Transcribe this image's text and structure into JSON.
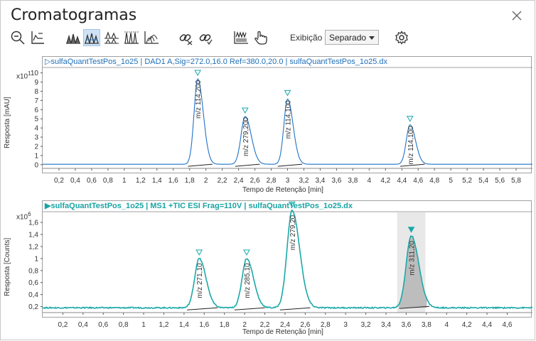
{
  "window": {
    "title": "Cromatogramas"
  },
  "toolbar": {
    "icons": [
      "zoom-out-icon",
      "autoscale-icon",
      "overlay-peaks-icon",
      "separate-peaks-icon",
      "stack-peaks-icon",
      "normalize-peaks-icon",
      "offset-peaks-icon",
      "link-icon",
      "unlink-icon",
      "integration-icon",
      "hand-select-icon",
      "settings-icon"
    ],
    "display_label": "Exibição",
    "display_value": "Separado"
  },
  "colors": {
    "uv_trace": "#1e72c6",
    "ms_trace": "#1aa8a8",
    "selected_peak_fill": "#c8c8c8",
    "marker": "#3a9ad6"
  },
  "chart_data": [
    {
      "type": "line",
      "title": "▷sulfaQuantTestPos_1o25 | DAD1 A,Sig=272.0,16.0  Ref=380.0,20.0 | sulfaQuantTestPos_1o25.dx",
      "xlabel": "Tempo de Retenção [min]",
      "ylabel": "Resposta [mAU]",
      "y_multiplier_base": "x10",
      "y_multiplier_exp": "1",
      "xlim": [
        0,
        6.0
      ],
      "ylim": [
        -0.4,
        10.2
      ],
      "x_ticks": [
        "0,2",
        "0,4",
        "0,6",
        "0,8",
        "1",
        "1,2",
        "1,4",
        "1,6",
        "1,8",
        "2",
        "2,2",
        "2,4",
        "2,6",
        "2,8",
        "3",
        "3,2",
        "3,4",
        "3,6",
        "3,8",
        "4",
        "4,2",
        "4,4",
        "4,6",
        "4,8",
        "5",
        "5,2",
        "5,4",
        "5,6",
        "5,8"
      ],
      "x_tick_values": [
        0.2,
        0.4,
        0.6,
        0.8,
        1.0,
        1.2,
        1.4,
        1.6,
        1.8,
        2.0,
        2.2,
        2.4,
        2.6,
        2.8,
        3.0,
        3.2,
        3.4,
        3.6,
        3.8,
        4.0,
        4.2,
        4.4,
        4.6,
        4.8,
        5.0,
        5.2,
        5.4,
        5.6,
        5.8
      ],
      "y_ticks": [
        "0",
        "1",
        "2",
        "3",
        "4",
        "5",
        "6",
        "7",
        "8",
        "9",
        "10"
      ],
      "y_tick_values": [
        0,
        1,
        2,
        3,
        4,
        5,
        6,
        7,
        8,
        9,
        10
      ],
      "baseline": 0.05,
      "peaks": [
        {
          "rt": 1.9,
          "height": 9.3,
          "width": 0.045,
          "label": "m/z 114,200"
        },
        {
          "rt": 2.48,
          "height": 5.2,
          "width": 0.05,
          "label": "m/z 279,200"
        },
        {
          "rt": 3.0,
          "height": 7.1,
          "width": 0.045,
          "label": "m/z 114,100"
        },
        {
          "rt": 4.5,
          "height": 4.3,
          "width": 0.045,
          "label": "m/z 114,100"
        }
      ]
    },
    {
      "type": "line",
      "title": "▶sulfaQuantTestPos_1o25 | MS1 +TIC ESI Frag=110V | sulfaQuantTestPos_1o25.dx",
      "xlabel": "Tempo de Retenção [min]",
      "ylabel": "Resposta [Counts]",
      "y_multiplier_base": "x10",
      "y_multiplier_exp": "6",
      "xlim": [
        0,
        4.85
      ],
      "ylim": [
        0.1,
        1.72
      ],
      "x_ticks": [
        "0,2",
        "0,4",
        "0,6",
        "0,8",
        "1",
        "1,2",
        "1,4",
        "1,6",
        "1,8",
        "2",
        "2,2",
        "2,4",
        "2,6",
        "2,8",
        "3",
        "3,2",
        "3,4",
        "3,6",
        "3,8",
        "4",
        "4,2",
        "4,4",
        "4,6"
      ],
      "x_tick_values": [
        0.2,
        0.4,
        0.6,
        0.8,
        1.0,
        1.2,
        1.4,
        1.6,
        1.8,
        2.0,
        2.2,
        2.4,
        2.6,
        2.8,
        3.0,
        3.2,
        3.4,
        3.6,
        3.8,
        4.0,
        4.2,
        4.4,
        4.6
      ],
      "y_ticks": [
        "0,2",
        "0,4",
        "0,6",
        "0,8",
        "1",
        "1,2",
        "1,4",
        "1,6"
      ],
      "y_tick_values": [
        0.2,
        0.4,
        0.6,
        0.8,
        1.0,
        1.2,
        1.4,
        1.6
      ],
      "baseline": 0.18,
      "peaks": [
        {
          "rt": 1.55,
          "height": 0.82,
          "width": 0.045,
          "label": "m/z 271,10",
          "selected": false
        },
        {
          "rt": 2.02,
          "height": 0.82,
          "width": 0.045,
          "label": "m/z 285,10",
          "selected": false
        },
        {
          "rt": 2.47,
          "height": 1.62,
          "width": 0.05,
          "label": "m/z 279,20",
          "selected": false
        },
        {
          "rt": 3.65,
          "height": 1.2,
          "width": 0.05,
          "label": "m/z 311,20",
          "selected": true
        }
      ]
    }
  ]
}
